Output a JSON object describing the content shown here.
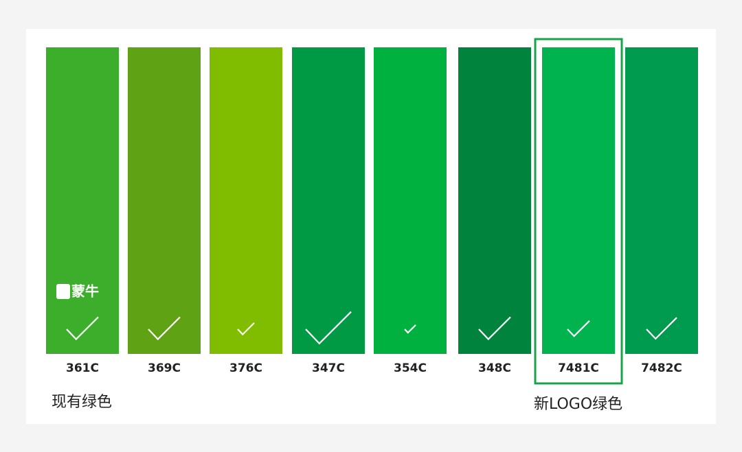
{
  "swatches": [
    {
      "label": "361C",
      "color": "#3dae2b"
    },
    {
      "label": "369C",
      "color": "#5fa314"
    },
    {
      "label": "376C",
      "color": "#80bc00"
    },
    {
      "label": "347C",
      "color": "#009a44"
    },
    {
      "label": "354C",
      "color": "#00b140"
    },
    {
      "label": "348C",
      "color": "#00843d"
    },
    {
      "label": "7481C",
      "color": "#00b34f"
    },
    {
      "label": "7482C",
      "color": "#009b4e"
    }
  ],
  "logo": "蒙牛",
  "captions": {
    "current": "现有绿色",
    "new": "新LOGO绿色"
  }
}
